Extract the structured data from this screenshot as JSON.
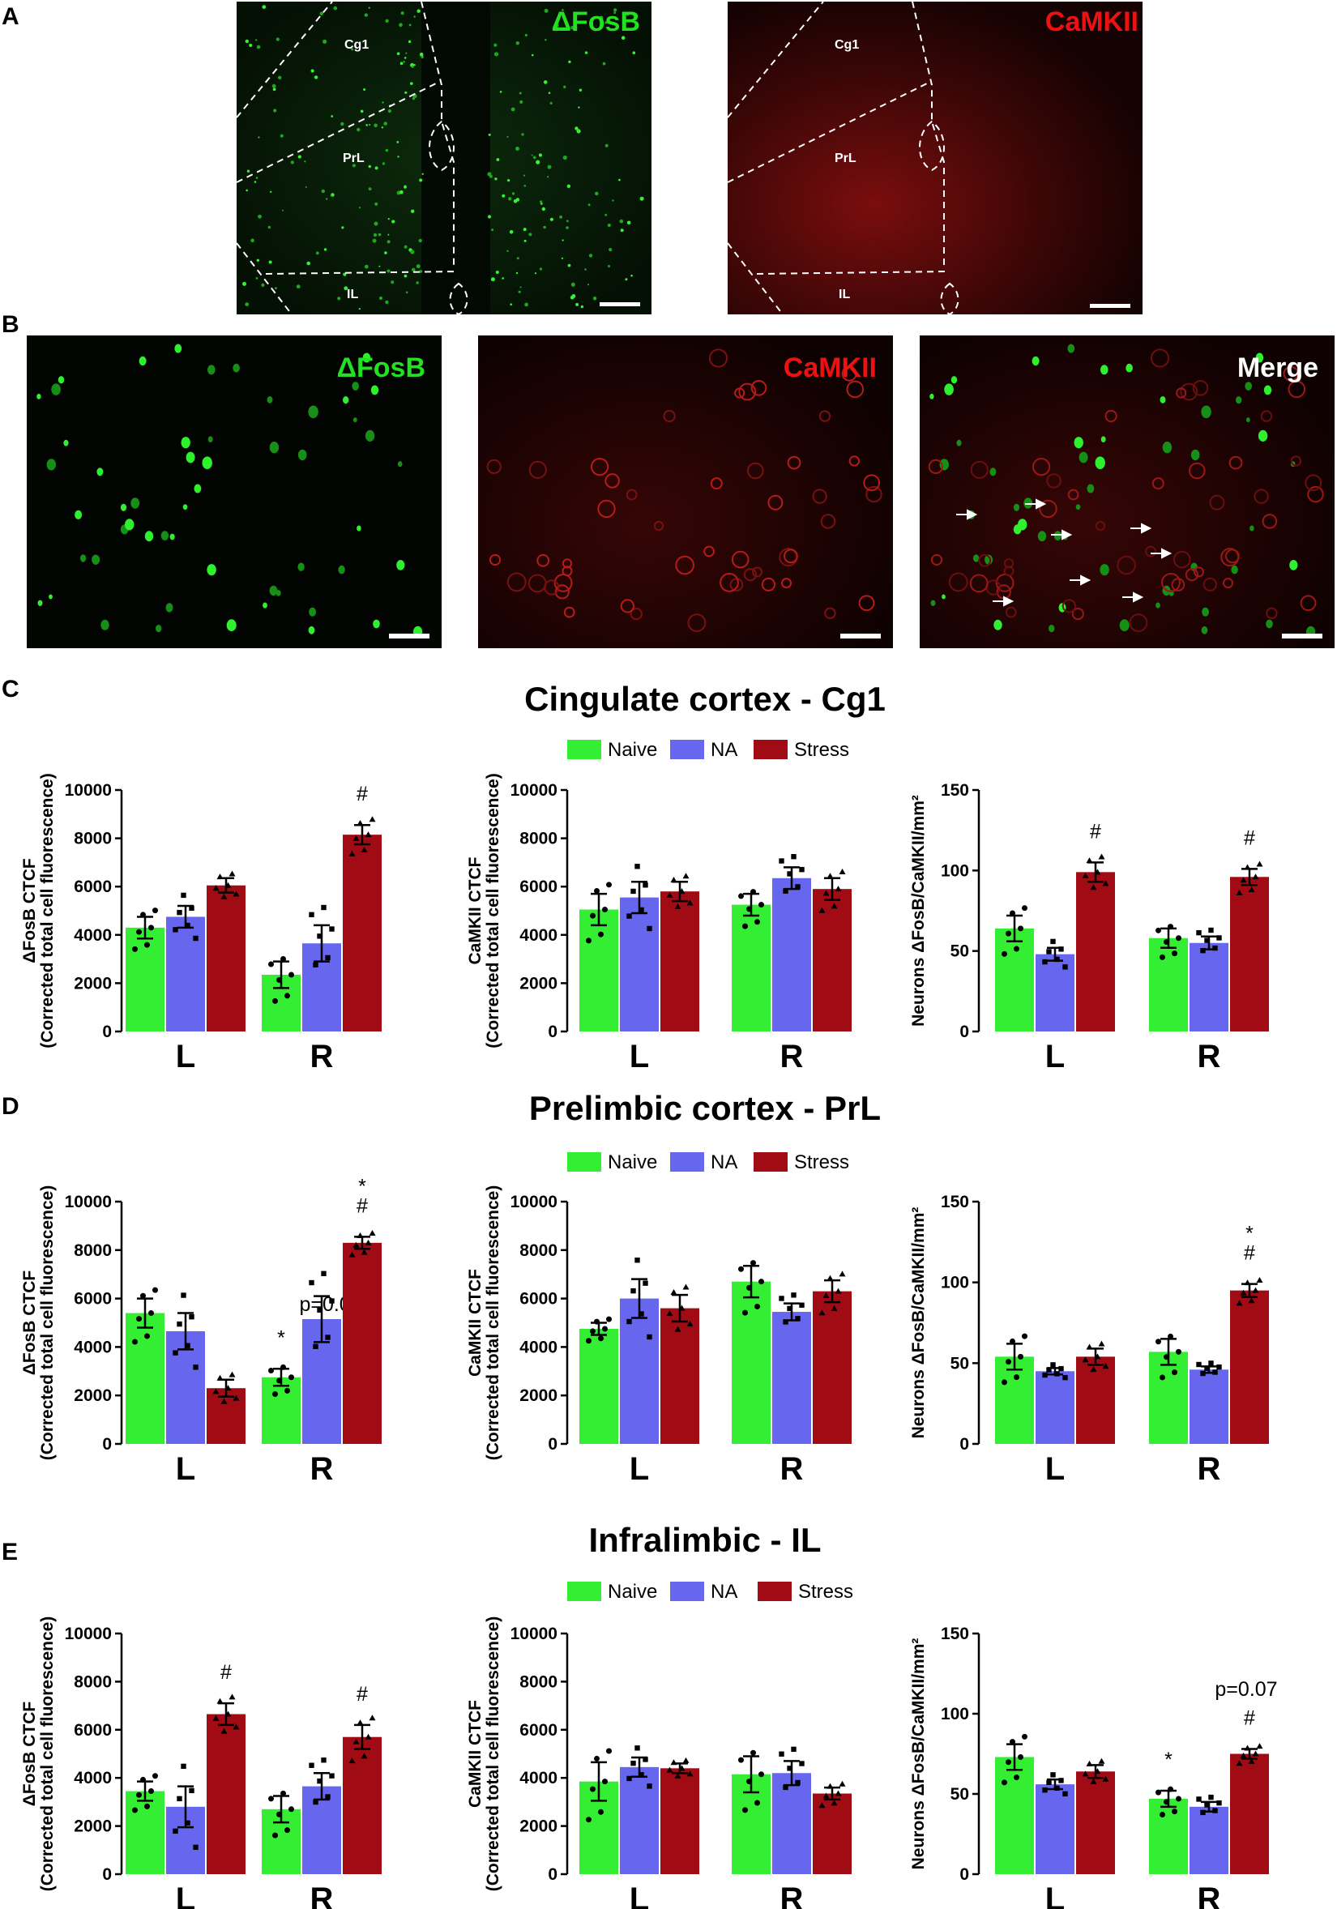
{
  "panel_labels": {
    "A": "A",
    "B": "B",
    "C": "C",
    "D": "D",
    "E": "E"
  },
  "legend": {
    "naive": "Naive",
    "na": "NA",
    "stress": "Stress"
  },
  "colors": {
    "naive": "#33ee33",
    "na": "#6666ee",
    "stress": "#a00b14",
    "green_label": "#22e022",
    "red_label": "#ee1111"
  },
  "micrographs": {
    "a_left_label": "ΔFosB",
    "a_right_label": "CaMKII",
    "a_regions": [
      "Cg1",
      "PrL",
      "IL"
    ],
    "b_labels": [
      "ΔFosB",
      "CaMKII",
      "Merge"
    ]
  },
  "sections": {
    "C": "Cingulate cortex - Cg1",
    "D": "Prelimbic cortex - PrL",
    "E": "Infralimbic - IL"
  },
  "axis_labels": {
    "fosb_line1": "ΔFosB CTCF",
    "camk_line1": "CaMKII CTCF",
    "ctcf_line2": "(Corrected total cell fluorescence)",
    "neurons": "Neurons ΔFosB/CaMKII/mm²"
  },
  "chart_data": [
    {
      "id": "C1",
      "type": "bar",
      "section": "C",
      "ylim": [
        0,
        10000
      ],
      "yticks": [
        "0",
        "2000",
        "4000",
        "6000",
        "8000",
        "10000"
      ],
      "categories": [
        "L",
        "R"
      ],
      "series": [
        {
          "name": "Naive",
          "values": [
            4300,
            2350
          ],
          "sem": [
            450,
            550
          ]
        },
        {
          "name": "NA",
          "values": [
            4750,
            3650
          ],
          "sem": [
            450,
            750
          ]
        },
        {
          "name": "Stress",
          "values": [
            6050,
            8150
          ],
          "sem": [
            300,
            400
          ]
        }
      ],
      "annotations": {
        "R": {
          "Stress": "#"
        }
      }
    },
    {
      "id": "C2",
      "type": "bar",
      "section": "C",
      "ylim": [
        0,
        10000
      ],
      "yticks": [
        "0",
        "2000",
        "4000",
        "6000",
        "8000",
        "10000"
      ],
      "categories": [
        "L",
        "R"
      ],
      "series": [
        {
          "name": "Naive",
          "values": [
            5050,
            5250
          ],
          "sem": [
            650,
            450
          ]
        },
        {
          "name": "NA",
          "values": [
            5550,
            6350
          ],
          "sem": [
            650,
            450
          ]
        },
        {
          "name": "Stress",
          "values": [
            5800,
            5900
          ],
          "sem": [
            400,
            450
          ]
        }
      ],
      "annotations": {}
    },
    {
      "id": "C3",
      "type": "bar",
      "section": "C",
      "ylim": [
        0,
        150
      ],
      "yticks": [
        "0",
        "50",
        "100",
        "150"
      ],
      "categories": [
        "L",
        "R"
      ],
      "series": [
        {
          "name": "Naive",
          "values": [
            64,
            58
          ],
          "sem": [
            8,
            6
          ]
        },
        {
          "name": "NA",
          "values": [
            48,
            55
          ],
          "sem": [
            4,
            4
          ]
        },
        {
          "name": "Stress",
          "values": [
            99,
            96
          ],
          "sem": [
            6,
            5
          ]
        }
      ],
      "annotations": {
        "L": {
          "Stress": "#"
        },
        "R": {
          "Stress": "#"
        }
      }
    },
    {
      "id": "D1",
      "type": "bar",
      "section": "D",
      "ylim": [
        0,
        10000
      ],
      "yticks": [
        "0",
        "2000",
        "4000",
        "6000",
        "8000",
        "10000"
      ],
      "categories": [
        "L",
        "R"
      ],
      "series": [
        {
          "name": "Naive",
          "values": [
            5400,
            2750
          ],
          "sem": [
            600,
            350
          ]
        },
        {
          "name": "NA",
          "values": [
            4650,
            5150
          ],
          "sem": [
            750,
            950
          ]
        },
        {
          "name": "Stress",
          "values": [
            2300,
            8300
          ],
          "sem": [
            350,
            250
          ]
        }
      ],
      "annotations": {
        "R": {
          "Naive": "*",
          "Stress": "*\n#"
        }
      },
      "text_annotations": [
        "p=0.056"
      ]
    },
    {
      "id": "D2",
      "type": "bar",
      "section": "D",
      "ylim": [
        0,
        10000
      ],
      "yticks": [
        "0",
        "2000",
        "4000",
        "6000",
        "8000",
        "10000"
      ],
      "categories": [
        "L",
        "R"
      ],
      "series": [
        {
          "name": "Naive",
          "values": [
            4750,
            6700
          ],
          "sem": [
            250,
            650
          ]
        },
        {
          "name": "NA",
          "values": [
            6000,
            5450
          ],
          "sem": [
            800,
            350
          ]
        },
        {
          "name": "Stress",
          "values": [
            5600,
            6300
          ],
          "sem": [
            550,
            450
          ]
        }
      ],
      "annotations": {}
    },
    {
      "id": "D3",
      "type": "bar",
      "section": "D",
      "ylim": [
        0,
        150
      ],
      "yticks": [
        "0",
        "50",
        "100",
        "150"
      ],
      "categories": [
        "L",
        "R"
      ],
      "series": [
        {
          "name": "Naive",
          "values": [
            54,
            57
          ],
          "sem": [
            8,
            8
          ]
        },
        {
          "name": "NA",
          "values": [
            45,
            46
          ],
          "sem": [
            2,
            2
          ]
        },
        {
          "name": "Stress",
          "values": [
            54,
            95
          ],
          "sem": [
            5,
            4
          ]
        }
      ],
      "annotations": {
        "R": {
          "Stress": "*\n#"
        }
      }
    },
    {
      "id": "E1",
      "type": "bar",
      "section": "E",
      "ylim": [
        0,
        10000
      ],
      "yticks": [
        "0",
        "2000",
        "4000",
        "6000",
        "8000",
        "10000"
      ],
      "categories": [
        "L",
        "R"
      ],
      "series": [
        {
          "name": "Naive",
          "values": [
            3450,
            2700
          ],
          "sem": [
            400,
            550
          ]
        },
        {
          "name": "NA",
          "values": [
            2800,
            3650
          ],
          "sem": [
            850,
            550
          ]
        },
        {
          "name": "Stress",
          "values": [
            6650,
            5700
          ],
          "sem": [
            450,
            500
          ]
        }
      ],
      "annotations": {
        "L": {
          "Stress": "#"
        },
        "R": {
          "Stress": "#"
        }
      }
    },
    {
      "id": "E2",
      "type": "bar",
      "section": "E",
      "ylim": [
        0,
        10000
      ],
      "yticks": [
        "0",
        "2000",
        "4000",
        "6000",
        "8000",
        "10000"
      ],
      "categories": [
        "L",
        "R"
      ],
      "series": [
        {
          "name": "Naive",
          "values": [
            3850,
            4150
          ],
          "sem": [
            800,
            750
          ]
        },
        {
          "name": "NA",
          "values": [
            4450,
            4200
          ],
          "sem": [
            400,
            500
          ]
        },
        {
          "name": "Stress",
          "values": [
            4400,
            3350
          ],
          "sem": [
            200,
            250
          ]
        }
      ],
      "annotations": {}
    },
    {
      "id": "E3",
      "type": "bar",
      "section": "E",
      "ylim": [
        0,
        150
      ],
      "yticks": [
        "0",
        "50",
        "100",
        "150"
      ],
      "categories": [
        "L",
        "R"
      ],
      "series": [
        {
          "name": "Naive",
          "values": [
            73,
            47
          ],
          "sem": [
            8,
            5
          ]
        },
        {
          "name": "NA",
          "values": [
            56,
            42
          ],
          "sem": [
            3,
            3
          ]
        },
        {
          "name": "Stress",
          "values": [
            64,
            75
          ],
          "sem": [
            4,
            3
          ]
        }
      ],
      "annotations": {
        "R": {
          "Naive": "*",
          "Stress": "#"
        }
      },
      "text_annotations": [
        "p=0.07"
      ]
    }
  ]
}
